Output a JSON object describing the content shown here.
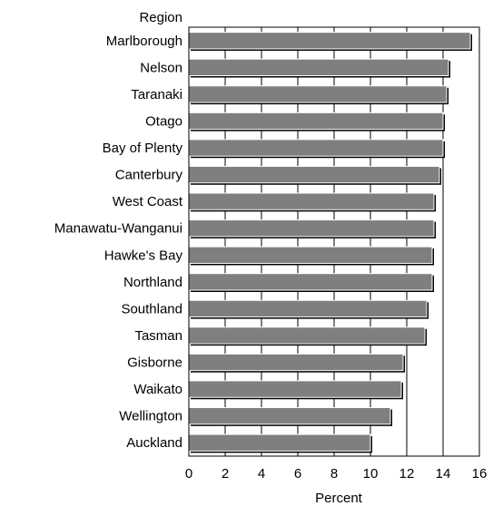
{
  "chart_data": {
    "type": "bar",
    "orientation": "horizontal",
    "ylabel": "Region",
    "xlabel": "Percent",
    "categories": [
      "Marlborough",
      "Nelson",
      "Taranaki",
      "Otago",
      "Bay of Plenty",
      "Canterbury",
      "West Coast",
      "Manawatu-Wanganui",
      "Hawke's Bay",
      "Northland",
      "Southland",
      "Tasman",
      "Gisborne",
      "Waikato",
      "Wellington",
      "Auckland"
    ],
    "values": [
      15.5,
      14.3,
      14.2,
      14.0,
      14.0,
      13.8,
      13.5,
      13.5,
      13.4,
      13.4,
      13.1,
      13.0,
      11.8,
      11.7,
      11.1,
      10.0
    ],
    "xlim": [
      0,
      16
    ],
    "xticks": [
      0,
      2,
      4,
      6,
      8,
      10,
      12,
      14,
      16
    ],
    "grid": "vertical-every-2",
    "colors": {
      "bar": "#7f7f7f",
      "bar_shadow": "#000000",
      "bar_edge": "#ffffff",
      "grid": "#000000"
    }
  }
}
